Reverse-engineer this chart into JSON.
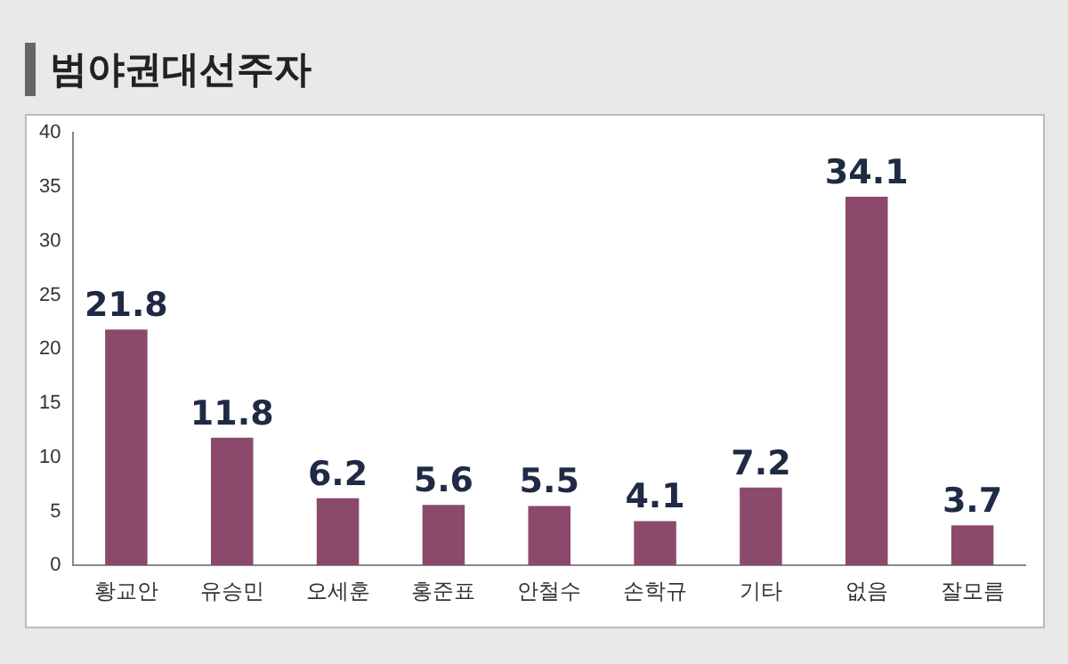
{
  "chart_data": {
    "type": "bar",
    "title": "범야권대선주자",
    "categories": [
      "황교안",
      "유승민",
      "오세훈",
      "홍준표",
      "안철수",
      "손학규",
      "기타",
      "없음",
      "잘모름"
    ],
    "values": [
      21.8,
      11.8,
      6.2,
      5.6,
      5.5,
      4.1,
      7.2,
      34.1,
      3.7
    ],
    "color": "#8b4a6b",
    "ylim": [
      0,
      40
    ],
    "yticks": [
      0,
      5,
      10,
      15,
      20,
      25,
      30,
      35,
      40
    ],
    "grid": false,
    "legend": false,
    "data_labels": true
  }
}
